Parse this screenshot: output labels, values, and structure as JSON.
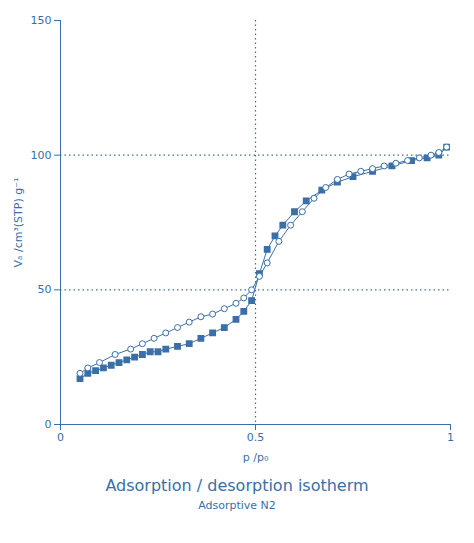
{
  "chart_data": {
    "type": "line",
    "title": "Adsorption / desorption isotherm",
    "subtitle": "Adsorptive N2",
    "xlabel": "p /p₀",
    "ylabel": "Vₐ /cm³(STP) g⁻¹",
    "xlim": [
      0,
      1.0
    ],
    "ylim": [
      0,
      150
    ],
    "xticks": [
      0,
      0.5,
      1
    ],
    "yticks": [
      0,
      50,
      100,
      150
    ],
    "grid": false,
    "color": "#3A6FA8",
    "vlines": [
      0.5
    ],
    "hlines": [
      100,
      50
    ],
    "line_style": "dotted",
    "series": [
      {
        "marker": "square",
        "x": [
          0.05,
          0.07,
          0.09,
          0.11,
          0.13,
          0.15,
          0.17,
          0.19,
          0.21,
          0.23,
          0.25,
          0.27,
          0.3,
          0.33,
          0.36,
          0.39,
          0.42,
          0.45,
          0.47,
          0.49,
          0.51,
          0.53,
          0.55,
          0.57,
          0.6,
          0.63,
          0.67,
          0.71,
          0.75,
          0.8,
          0.85,
          0.9,
          0.94,
          0.97,
          0.99
        ],
        "values": [
          17,
          19,
          20,
          21,
          22,
          23,
          24,
          25,
          26,
          27,
          27,
          28,
          29,
          30,
          32,
          34,
          36,
          39,
          42,
          46,
          56,
          65,
          70,
          74,
          79,
          83,
          87,
          90,
          92,
          94,
          96,
          98,
          99,
          100,
          103
        ]
      },
      {
        "marker": "circle_open",
        "x": [
          0.99,
          0.97,
          0.95,
          0.92,
          0.89,
          0.86,
          0.83,
          0.8,
          0.77,
          0.74,
          0.71,
          0.68,
          0.65,
          0.62,
          0.59,
          0.56,
          0.53,
          0.51,
          0.49,
          0.47,
          0.45,
          0.42,
          0.39,
          0.36,
          0.33,
          0.3,
          0.27,
          0.24,
          0.21,
          0.18,
          0.14,
          0.1,
          0.07,
          0.05
        ],
        "values": [
          103,
          101,
          100,
          99,
          98,
          97,
          96,
          95,
          94,
          93,
          91,
          88,
          84,
          79,
          74,
          68,
          60,
          55,
          50,
          47,
          45,
          43,
          41,
          40,
          38,
          36,
          34,
          32,
          30,
          28,
          26,
          23,
          21,
          19
        ]
      }
    ]
  }
}
